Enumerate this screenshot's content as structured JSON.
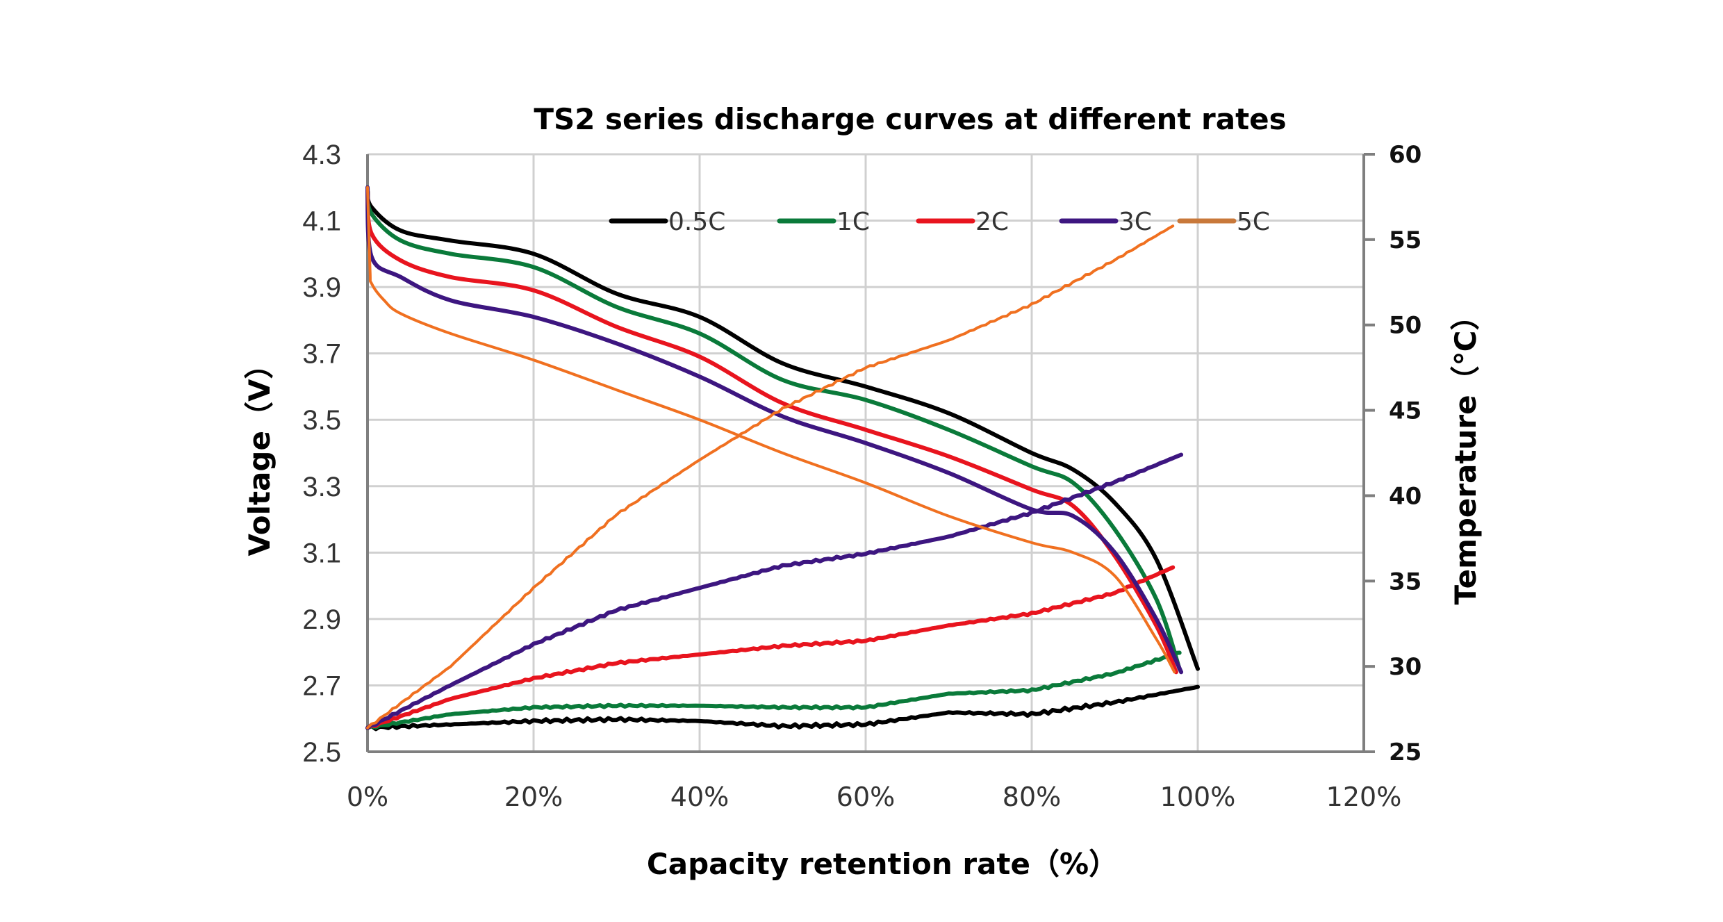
{
  "chart_data": {
    "type": "line",
    "title": "TS2 series discharge curves at different rates",
    "xlabel": "Capacity retention rate（%）",
    "ylabel": "Voltage（V）",
    "y2label": "Temperature（℃）",
    "xlim": [
      0,
      120
    ],
    "ylim": [
      2.5,
      4.3
    ],
    "y2lim": [
      25,
      60
    ],
    "x_ticks": [
      "0%",
      "20%",
      "40%",
      "60%",
      "80%",
      "100%",
      "120%"
    ],
    "x_tick_values": [
      0,
      20,
      40,
      60,
      80,
      100,
      120
    ],
    "y_ticks": [
      "4.3",
      "4.1",
      "3.9",
      "3.7",
      "3.5",
      "3.3",
      "3.1",
      "2.9",
      "2.7",
      "2.5"
    ],
    "y_tick_values": [
      4.3,
      4.1,
      3.9,
      3.7,
      3.5,
      3.3,
      3.1,
      2.9,
      2.7,
      2.5
    ],
    "y2_ticks": [
      "60",
      "55",
      "50",
      "45",
      "40",
      "35",
      "30",
      "25"
    ],
    "y2_tick_values": [
      60,
      55,
      50,
      45,
      40,
      35,
      30,
      25
    ],
    "grid": true,
    "legend_position": "top-inside",
    "series": [
      {
        "name": "0.5C",
        "color": "#000000",
        "voltage": {
          "x": [
            0,
            0.5,
            4,
            10,
            20,
            30,
            40,
            50,
            60,
            70,
            80,
            85,
            90,
            95,
            100
          ],
          "y": [
            4.19,
            4.14,
            4.07,
            4.04,
            4.0,
            3.88,
            3.81,
            3.67,
            3.6,
            3.52,
            3.4,
            3.35,
            3.25,
            3.08,
            2.75
          ]
        },
        "temperature": {
          "x": [
            0,
            10,
            20,
            30,
            40,
            50,
            60,
            70,
            80,
            90,
            100
          ],
          "y": [
            26.4,
            26.6,
            26.8,
            26.9,
            26.8,
            26.5,
            26.6,
            27.3,
            27.2,
            27.9,
            28.8
          ]
        }
      },
      {
        "name": "1C",
        "color": "#0a7a3a",
        "voltage": {
          "x": [
            0,
            0.5,
            4,
            10,
            20,
            30,
            40,
            50,
            60,
            70,
            80,
            85,
            90,
            95,
            97.8
          ],
          "y": [
            4.19,
            4.12,
            4.04,
            4.0,
            3.96,
            3.84,
            3.76,
            3.62,
            3.56,
            3.47,
            3.36,
            3.31,
            3.17,
            2.96,
            2.75
          ]
        },
        "temperature": {
          "x": [
            0,
            10,
            20,
            30,
            40,
            50,
            60,
            70,
            80,
            90,
            97.8
          ],
          "y": [
            26.4,
            27.2,
            27.6,
            27.7,
            27.7,
            27.6,
            27.6,
            28.4,
            28.6,
            29.6,
            30.8
          ]
        }
      },
      {
        "name": "2C",
        "color": "#e8141e",
        "voltage": {
          "x": [
            0,
            0.5,
            4,
            10,
            20,
            30,
            40,
            50,
            60,
            70,
            80,
            85,
            90,
            95,
            97.4
          ],
          "y": [
            4.19,
            4.06,
            3.98,
            3.93,
            3.89,
            3.78,
            3.69,
            3.55,
            3.47,
            3.39,
            3.29,
            3.24,
            3.09,
            2.88,
            2.74
          ]
        },
        "temperature": {
          "x": [
            0,
            10,
            20,
            30,
            40,
            50,
            60,
            70,
            80,
            90,
            97
          ],
          "y": [
            26.4,
            28.1,
            29.3,
            30.2,
            30.7,
            31.2,
            31.5,
            32.4,
            33.1,
            34.3,
            35.8
          ]
        }
      },
      {
        "name": "3C",
        "color": "#3d1680",
        "voltage": {
          "x": [
            0,
            0.5,
            4,
            10,
            20,
            30,
            40,
            50,
            60,
            70,
            80,
            85,
            90,
            95,
            98
          ],
          "y": [
            4.2,
            3.99,
            3.93,
            3.86,
            3.81,
            3.73,
            3.63,
            3.51,
            3.43,
            3.34,
            3.23,
            3.21,
            3.1,
            2.9,
            2.74
          ]
        },
        "temperature": {
          "x": [
            0,
            10,
            20,
            30,
            40,
            50,
            60,
            70,
            80,
            90,
            98
          ],
          "y": [
            26.4,
            28.9,
            31.3,
            33.3,
            34.6,
            35.9,
            36.6,
            37.6,
            39.0,
            40.8,
            42.4
          ]
        }
      },
      {
        "name": "5C",
        "color": "#f07020",
        "legend_color": "#c8783a",
        "voltage": {
          "x": [
            0,
            0.3,
            0.5,
            2,
            4,
            10,
            20,
            30,
            40,
            50,
            60,
            70,
            80,
            85,
            90,
            95,
            97.2
          ],
          "y": [
            4.2,
            3.95,
            3.91,
            3.86,
            3.82,
            3.76,
            3.68,
            3.59,
            3.5,
            3.4,
            3.31,
            3.21,
            3.13,
            3.1,
            3.03,
            2.84,
            2.74
          ]
        },
        "temperature": {
          "x": [
            0,
            10,
            20,
            30,
            40,
            50,
            60,
            70,
            80,
            90,
            97
          ],
          "y": [
            26.4,
            30.0,
            34.6,
            38.9,
            42.1,
            45.1,
            47.5,
            49.1,
            51.2,
            53.8,
            55.8
          ]
        }
      }
    ]
  }
}
